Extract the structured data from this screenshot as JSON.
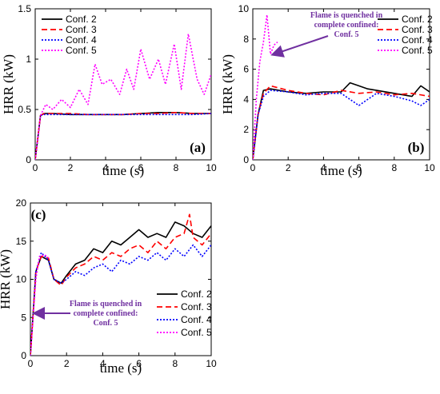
{
  "chart_data": [
    {
      "type": "line",
      "panel_label": "(a)",
      "xlabel": "time (s)",
      "ylabel": "HRR (kW)",
      "xlim": [
        0,
        10
      ],
      "ylim": [
        0,
        1.5
      ],
      "xticks": [
        "0",
        "2",
        "4",
        "6",
        "8",
        "10"
      ],
      "yticks": [
        "0",
        "0.5",
        "1",
        "1.5"
      ],
      "legend": "top-left",
      "annotation": "",
      "series": [
        {
          "name": "Conf. 2",
          "color": "#000000",
          "style": "solid",
          "x": [
            0,
            0.3,
            0.5,
            1,
            2,
            3,
            4,
            5,
            6,
            7,
            8,
            9,
            10
          ],
          "y": [
            0,
            0.44,
            0.46,
            0.46,
            0.45,
            0.45,
            0.45,
            0.45,
            0.46,
            0.47,
            0.47,
            0.46,
            0.46
          ]
        },
        {
          "name": "Conf. 3",
          "color": "#ff0000",
          "style": "dashed",
          "x": [
            0,
            0.3,
            0.5,
            1,
            2,
            3,
            4,
            5,
            6,
            7,
            8,
            9,
            10
          ],
          "y": [
            0,
            0.44,
            0.46,
            0.46,
            0.46,
            0.45,
            0.45,
            0.45,
            0.46,
            0.46,
            0.47,
            0.46,
            0.46
          ]
        },
        {
          "name": "Conf. 4",
          "color": "#0000ff",
          "style": "dotted",
          "x": [
            0,
            0.3,
            0.5,
            1,
            2,
            3,
            4,
            5,
            6,
            7,
            8,
            9,
            10
          ],
          "y": [
            0,
            0.44,
            0.45,
            0.45,
            0.45,
            0.45,
            0.45,
            0.45,
            0.45,
            0.45,
            0.45,
            0.45,
            0.46
          ]
        },
        {
          "name": "Conf. 5",
          "color": "#ff00ff",
          "style": "dotted",
          "x": [
            0,
            0.3,
            0.6,
            1,
            1.5,
            2,
            2.5,
            3,
            3.4,
            3.8,
            4.3,
            4.8,
            5.2,
            5.6,
            6,
            6.5,
            7,
            7.4,
            7.9,
            8.3,
            8.7,
            9.2,
            9.6,
            10
          ],
          "y": [
            0,
            0.44,
            0.55,
            0.5,
            0.6,
            0.52,
            0.7,
            0.55,
            0.95,
            0.75,
            0.8,
            0.65,
            0.9,
            0.7,
            1.1,
            0.8,
            1.0,
            0.75,
            1.15,
            0.7,
            1.25,
            0.8,
            0.65,
            0.85
          ]
        }
      ]
    },
    {
      "type": "line",
      "panel_label": "(b)",
      "xlabel": "time (s)",
      "ylabel": "HRR (kW)",
      "xlim": [
        0,
        10
      ],
      "ylim": [
        0,
        10
      ],
      "xticks": [
        "0",
        "2",
        "4",
        "6",
        "8",
        "10"
      ],
      "yticks": [
        "0",
        "2",
        "4",
        "6",
        "8",
        "10"
      ],
      "legend": "top-right",
      "annotation": "Flame is quenched in complete confined: Conf. 5",
      "series": [
        {
          "name": "Conf. 2",
          "color": "#000000",
          "style": "solid",
          "x": [
            0,
            0.3,
            0.6,
            1,
            2,
            3,
            4,
            5,
            5.5,
            6,
            6.5,
            7,
            8,
            9,
            9.5,
            10
          ],
          "y": [
            0,
            3.0,
            4.6,
            4.7,
            4.5,
            4.4,
            4.5,
            4.5,
            5.1,
            4.9,
            4.7,
            4.6,
            4.4,
            4.2,
            4.9,
            4.5
          ]
        },
        {
          "name": "Conf. 3",
          "color": "#ff0000",
          "style": "dashed",
          "x": [
            0,
            0.3,
            0.6,
            1,
            2,
            3,
            4,
            5,
            6,
            7,
            8,
            9,
            10
          ],
          "y": [
            0,
            3.0,
            4.4,
            4.9,
            4.6,
            4.4,
            4.3,
            4.6,
            4.4,
            4.5,
            4.3,
            4.4,
            4.2
          ]
        },
        {
          "name": "Conf. 4",
          "color": "#0000ff",
          "style": "dotted",
          "x": [
            0,
            0.3,
            0.6,
            1,
            2,
            3,
            4,
            5,
            6,
            6.5,
            7,
            8,
            9,
            9.5,
            10
          ],
          "y": [
            0,
            3.0,
            4.2,
            4.6,
            4.5,
            4.3,
            4.4,
            4.4,
            3.6,
            4.0,
            4.4,
            4.2,
            3.9,
            3.6,
            4.0
          ]
        },
        {
          "name": "Conf. 5",
          "color": "#ff00ff",
          "style": "dotted",
          "x": [
            0,
            0.2,
            0.4,
            0.6,
            0.8,
            1.0,
            1.2,
            1.4
          ],
          "y": [
            0,
            4.0,
            6.5,
            7.8,
            9.6,
            7.0,
            7.6,
            7.8
          ]
        }
      ]
    },
    {
      "type": "line",
      "panel_label": "(c)",
      "xlabel": "time (s)",
      "ylabel": "HRR (kW)",
      "xlim": [
        0,
        10
      ],
      "ylim": [
        0,
        20
      ],
      "xticks": [
        "0",
        "2",
        "4",
        "6",
        "8",
        "10"
      ],
      "yticks": [
        "0",
        "5",
        "10",
        "15",
        "20"
      ],
      "legend": "bottom-right",
      "annotation": "Flame is quenched in complete confined: Conf. 5",
      "series": [
        {
          "name": "Conf. 2",
          "color": "#000000",
          "style": "solid",
          "x": [
            0,
            0.3,
            0.6,
            1.0,
            1.3,
            1.7,
            2.0,
            2.5,
            3.0,
            3.5,
            4.0,
            4.5,
            5.0,
            5.5,
            6.0,
            6.5,
            7.0,
            7.5,
            8.0,
            8.5,
            9.0,
            9.5,
            10
          ],
          "y": [
            0,
            11,
            13,
            12.5,
            10,
            9.5,
            10.5,
            12,
            12.5,
            14,
            13.5,
            15,
            14.5,
            15.5,
            16.5,
            15.5,
            16,
            15.5,
            17.5,
            17,
            16,
            15.5,
            17
          ]
        },
        {
          "name": "Conf. 3",
          "color": "#ff0000",
          "style": "dashed",
          "x": [
            0,
            0.3,
            0.6,
            1.0,
            1.3,
            1.7,
            2.0,
            2.5,
            3.0,
            3.5,
            4.0,
            4.5,
            5.0,
            5.5,
            6.0,
            6.5,
            7.0,
            7.5,
            8.0,
            8.5,
            8.8,
            9.0,
            9.5,
            10
          ],
          "y": [
            0,
            11,
            13,
            12.8,
            10,
            9.2,
            10.3,
            11.5,
            12,
            13,
            12.5,
            13.5,
            13,
            14,
            14.5,
            13.5,
            15,
            14,
            15.5,
            16,
            18.5,
            15.5,
            14.5,
            16
          ]
        },
        {
          "name": "Conf. 4",
          "color": "#0000ff",
          "style": "dotted",
          "x": [
            0,
            0.3,
            0.6,
            1.0,
            1.3,
            1.7,
            2.0,
            2.5,
            3.0,
            3.5,
            4.0,
            4.5,
            5.0,
            5.5,
            6.0,
            6.5,
            7.0,
            7.5,
            8.0,
            8.5,
            9.0,
            9.5,
            10
          ],
          "y": [
            0,
            11,
            13.5,
            12.5,
            10,
            9.5,
            10,
            11,
            10.5,
            11.5,
            12,
            11,
            12.5,
            12,
            13,
            12.5,
            13.5,
            12.5,
            14,
            13,
            14.5,
            13,
            14.5
          ]
        },
        {
          "name": "Conf. 5",
          "color": "#ff00ff",
          "style": "dotted",
          "x": [
            0,
            0.3,
            0.5,
            0.8,
            1.0
          ],
          "y": [
            0,
            10,
            13,
            13.2,
            12.8
          ]
        }
      ]
    }
  ]
}
